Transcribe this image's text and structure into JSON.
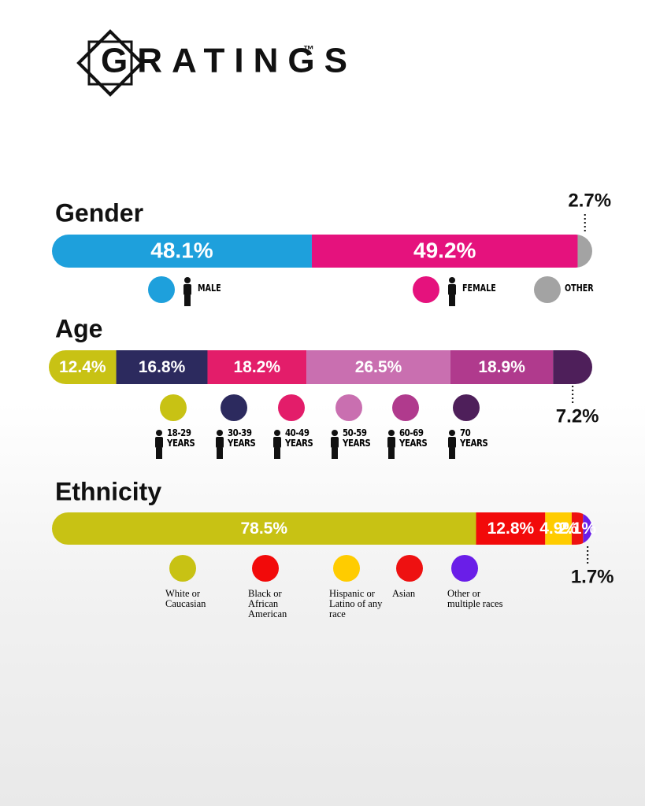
{
  "brand": "GRATINGS",
  "trademark": "™",
  "chart_data": [
    {
      "type": "stacked-bar",
      "title": "Gender",
      "xlim": [
        0,
        100
      ],
      "values": [
        48.1,
        49.2,
        2.7
      ],
      "value_labels": [
        "48.1%",
        "49.2%",
        "2.7%"
      ],
      "labels": [
        "MALE",
        "FEMALE",
        "OTHER"
      ],
      "colors": [
        "#1ea0dc",
        "#e5127d",
        "#a3a3a3"
      ]
    },
    {
      "type": "stacked-bar",
      "title": "Age",
      "xlim": [
        0,
        100
      ],
      "values": [
        12.4,
        16.8,
        18.2,
        26.5,
        18.9,
        7.2
      ],
      "value_labels": [
        "12.4%",
        "16.8%",
        "18.2%",
        "26.5%",
        "18.9%",
        "7.2%"
      ],
      "labels": [
        "18-29 YEARS",
        "30-39 YEARS",
        "40-49 YEARS",
        "50-59 YEARS",
        "60-69 YEARS",
        "70 YEARS"
      ],
      "colors": [
        "#c8c214",
        "#2c2a5e",
        "#e31d6a",
        "#c96fb0",
        "#b03a8d",
        "#4e1f5a"
      ]
    },
    {
      "type": "stacked-bar",
      "title": "Ethnicity",
      "xlim": [
        0,
        100
      ],
      "values": [
        78.5,
        12.8,
        4.9,
        2.1,
        1.7
      ],
      "value_labels": [
        "78.5%",
        "12.8%",
        "4.9%",
        "2.1%",
        "1.7%"
      ],
      "labels": [
        "White or Caucasian",
        "Black or African American",
        "Hispanic or Latino of any race",
        "Asian",
        "Other or multiple races"
      ],
      "colors": [
        "#c8c214",
        "#f20a0a",
        "#ffcc00",
        "#ee1111",
        "#6a1ee8"
      ]
    }
  ]
}
